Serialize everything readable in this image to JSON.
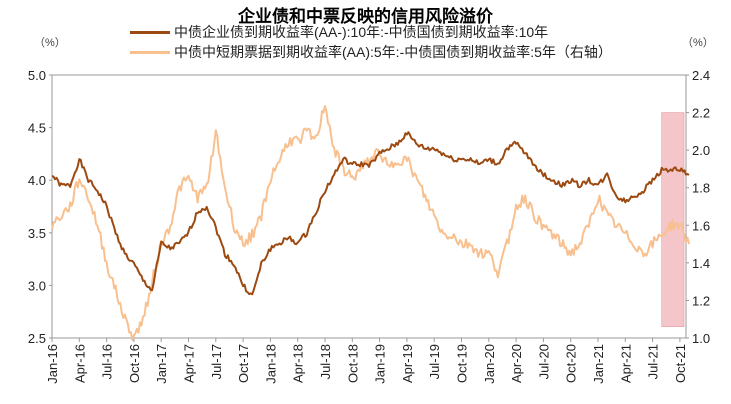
{
  "chart_data": {
    "type": "line",
    "title": "企业债和中票反映的信用风险溢价",
    "left_unit": "（%）",
    "right_unit": "（%）",
    "left_ylim": [
      2.5,
      5.0
    ],
    "right_ylim": [
      1.0,
      2.4
    ],
    "left_ticks": [
      "2.5",
      "3.0",
      "3.5",
      "4.0",
      "4.5",
      "5.0"
    ],
    "right_ticks": [
      "1.0",
      "1.2",
      "1.4",
      "1.6",
      "1.8",
      "2.0",
      "2.2",
      "2.4"
    ],
    "x_ticks": [
      "Jan-16",
      "Apr-16",
      "Jul-16",
      "Oct-16",
      "Jan-17",
      "Apr-17",
      "Jul-17",
      "Oct-17",
      "Jan-18",
      "Apr-18",
      "Jul-18",
      "Oct-18",
      "Jan-19",
      "Apr-19",
      "Jul-19",
      "Oct-19",
      "Jan-20",
      "Apr-20",
      "Jul-20",
      "Oct-20",
      "Jan-21",
      "Apr-21",
      "Jul-21",
      "Oct-21"
    ],
    "x_start": "2016-01",
    "months": 71,
    "highlight": {
      "from_month": 67,
      "to_month": 71,
      "right_range": [
        1.06,
        2.2
      ],
      "color": "#f4c6c9"
    },
    "series": [
      {
        "name": "中债企业债到期收益率(AA-):10年:-中债国债到期收益率:10年",
        "axis": "left",
        "color": "#9c4a12",
        "values": [
          4.05,
          3.95,
          3.95,
          4.2,
          4.0,
          3.9,
          3.75,
          3.5,
          3.3,
          3.2,
          3.05,
          2.95,
          3.4,
          3.35,
          3.4,
          3.5,
          3.7,
          3.75,
          3.55,
          3.3,
          3.2,
          3.0,
          2.9,
          3.2,
          3.35,
          3.4,
          3.45,
          3.4,
          3.5,
          3.7,
          3.9,
          4.05,
          4.2,
          4.15,
          4.15,
          4.15,
          4.25,
          4.3,
          4.35,
          4.45,
          4.35,
          4.3,
          4.3,
          4.25,
          4.2,
          4.2,
          4.2,
          4.15,
          4.2,
          4.15,
          4.3,
          4.35,
          4.25,
          4.15,
          4.05,
          4.0,
          3.95,
          4.0,
          3.95,
          4.0,
          3.95,
          4.05,
          3.85,
          3.8,
          3.85,
          3.9,
          4.0,
          4.1,
          4.1,
          4.1,
          4.05
        ]
      },
      {
        "name": "中债中短期票据到期收益率(AA):5年:-中债国债到期收益率:5年（右轴）",
        "axis": "right",
        "color": "#f9c08f",
        "values": [
          1.6,
          1.65,
          1.7,
          1.85,
          1.75,
          1.6,
          1.4,
          1.25,
          1.1,
          1.0,
          1.1,
          1.3,
          1.5,
          1.6,
          1.8,
          1.85,
          1.75,
          1.8,
          2.1,
          1.8,
          1.6,
          1.5,
          1.55,
          1.65,
          1.85,
          1.95,
          2.05,
          2.05,
          2.1,
          2.05,
          2.25,
          2.0,
          1.9,
          1.85,
          1.9,
          1.95,
          2.0,
          1.9,
          1.95,
          1.95,
          1.85,
          1.75,
          1.65,
          1.55,
          1.55,
          1.5,
          1.5,
          1.45,
          1.45,
          1.35,
          1.5,
          1.7,
          1.75,
          1.65,
          1.6,
          1.55,
          1.5,
          1.45,
          1.5,
          1.6,
          1.75,
          1.65,
          1.6,
          1.55,
          1.5,
          1.45,
          1.5,
          1.55,
          1.6,
          1.6,
          1.5
        ]
      }
    ]
  }
}
